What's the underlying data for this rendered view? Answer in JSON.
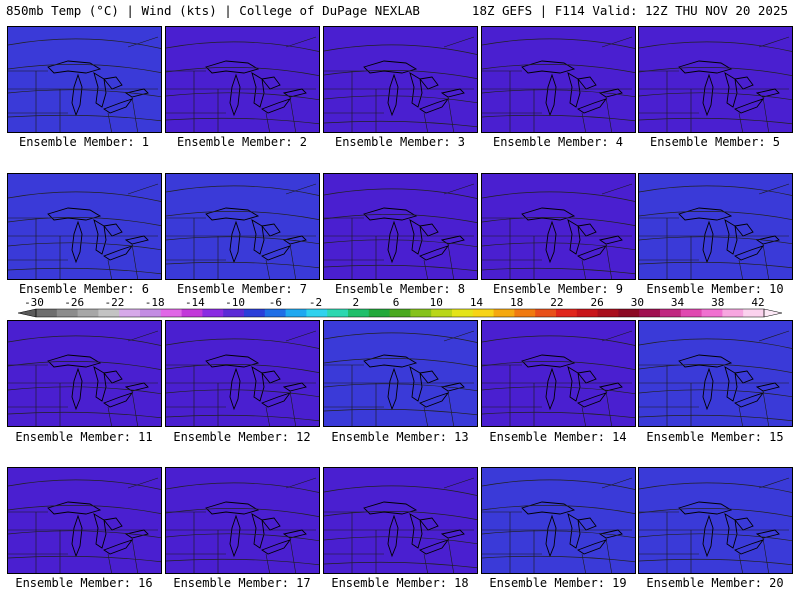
{
  "header": {
    "left": "850mb Temp (°C) | Wind (kts) | College of DuPage NEXLAB",
    "right": "18Z GEFS | F114 Valid: 12Z THU NOV 20 2025"
  },
  "members": [
    {
      "label": "Ensemble Member: 1",
      "warmth": 0.62
    },
    {
      "label": "Ensemble Member: 2",
      "warmth": 0.55
    },
    {
      "label": "Ensemble Member: 3",
      "warmth": 0.55
    },
    {
      "label": "Ensemble Member: 4",
      "warmth": 0.4
    },
    {
      "label": "Ensemble Member: 5",
      "warmth": 0.55
    },
    {
      "label": "Ensemble Member: 6",
      "warmth": 0.62
    },
    {
      "label": "Ensemble Member: 7",
      "warmth": 0.6
    },
    {
      "label": "Ensemble Member: 8",
      "warmth": 0.5
    },
    {
      "label": "Ensemble Member: 9",
      "warmth": 0.58
    },
    {
      "label": "Ensemble Member: 10",
      "warmth": 0.62
    },
    {
      "label": "Ensemble Member: 11",
      "warmth": 0.55
    },
    {
      "label": "Ensemble Member: 12",
      "warmth": 0.35
    },
    {
      "label": "Ensemble Member: 13",
      "warmth": 0.6
    },
    {
      "label": "Ensemble Member: 14",
      "warmth": 0.55
    },
    {
      "label": "Ensemble Member: 15",
      "warmth": 0.68
    },
    {
      "label": "Ensemble Member: 16",
      "warmth": 0.42
    },
    {
      "label": "Ensemble Member: 17",
      "warmth": 0.45
    },
    {
      "label": "Ensemble Member: 18",
      "warmth": 0.48
    },
    {
      "label": "Ensemble Member: 19",
      "warmth": 0.7
    },
    {
      "label": "Ensemble Member: 20",
      "warmth": 0.68
    }
  ],
  "colorbar": {
    "ticks": [
      "-30",
      "-26",
      "-22",
      "-18",
      "-14",
      "-10",
      "-6",
      "-2",
      "2",
      "6",
      "10",
      "14",
      "18",
      "22",
      "26",
      "30",
      "34",
      "38",
      "42"
    ],
    "colors": [
      "#6e6e6e",
      "#8c8c8c",
      "#a7a7a7",
      "#c3c3c3",
      "#d6a9e9",
      "#c38ce3",
      "#e066e6",
      "#c238d9",
      "#8a2be2",
      "#5b2bd6",
      "#2b3fd9",
      "#1f6fe6",
      "#1fa8f0",
      "#2fd2ee",
      "#2cd7b0",
      "#1fbf6b",
      "#22a83b",
      "#4aa820",
      "#86c21c",
      "#b9d61a",
      "#e4e41a",
      "#f7d416",
      "#f5a80f",
      "#f07a10",
      "#e8501a",
      "#e0261c",
      "#c8151a",
      "#a80f1c",
      "#8b0a23",
      "#a01050",
      "#c02880",
      "#e048b0",
      "#f070d0",
      "#f7a6e0",
      "#fbd2ee"
    ],
    "left_arrow_color": "#5a5a5a",
    "right_arrow_color": "#fce8f6"
  },
  "palette": {
    "cold": [
      "#4a1fd0",
      "#3a3ad8",
      "#2a5ee6",
      "#2a82ec",
      "#27a8ef",
      "#30c8ec",
      "#2fd9d2",
      "#2ad5a8",
      "#25c27a",
      "#23ad4a",
      "#3aa82a",
      "#6ab822",
      "#a2cc1e",
      "#d2dc1c",
      "#eedf1a",
      "#f4c818"
    ]
  }
}
